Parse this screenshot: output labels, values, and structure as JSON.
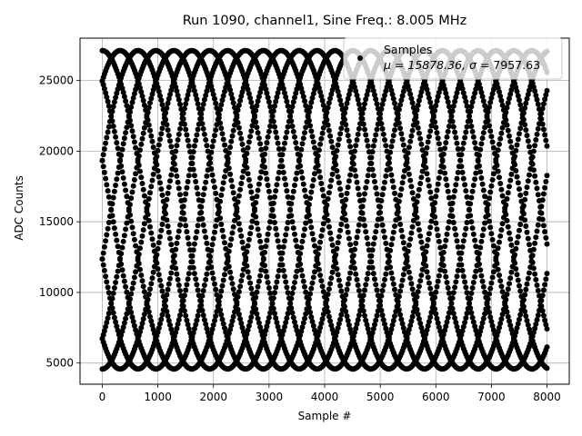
{
  "chart_data": {
    "type": "scatter",
    "title": "Run 1090, channel1, Sine Freq.: 8.005 MHz",
    "xlabel": "Sample #",
    "ylabel": "ADC Counts",
    "xlim": [
      -400,
      8400
    ],
    "ylim": [
      3500,
      28000
    ],
    "xticks": [
      0,
      1000,
      2000,
      3000,
      4000,
      5000,
      6000,
      7000,
      8000
    ],
    "yticks": [
      5000,
      10000,
      15000,
      20000,
      25000
    ],
    "grid": true,
    "legend": {
      "placement": "top-right",
      "title": "Samples",
      "stats_prefix": "μ = 15878.36, ",
      "stats_sigma": "σ",
      "stats_suffix": " = 7957.63"
    },
    "series": [
      {
        "marker": "circle",
        "color": "#000000",
        "model": {
          "amplitude": 11270,
          "offset": 15850,
          "envelope_period_samples": 3220,
          "phases_deg": [
            0,
            36,
            72,
            108,
            144,
            180,
            216,
            252,
            288,
            324
          ]
        },
        "x_range": [
          0,
          8000
        ]
      }
    ]
  }
}
